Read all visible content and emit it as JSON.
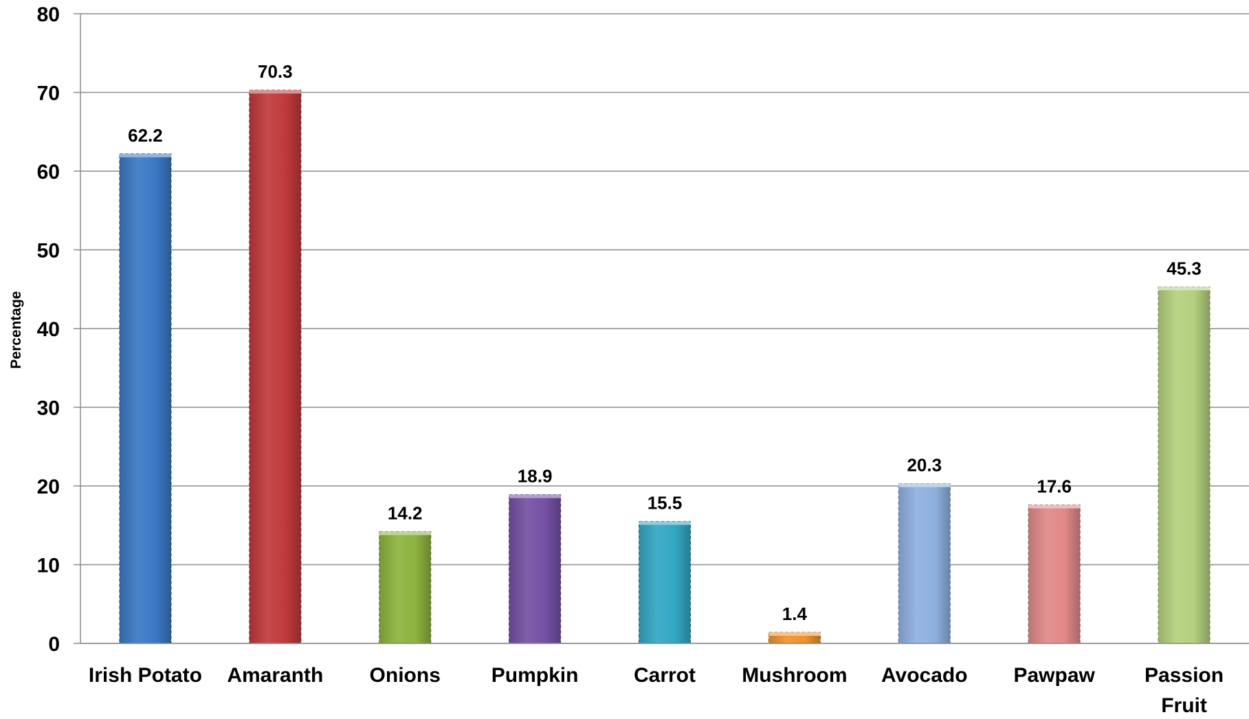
{
  "chart_data": {
    "type": "bar",
    "title": "",
    "xlabel": "",
    "ylabel": "Percentage",
    "ylim": [
      0,
      80
    ],
    "yticks": [
      0,
      10,
      20,
      30,
      40,
      50,
      60,
      70,
      80
    ],
    "grid": true,
    "legend": "none",
    "categories": [
      "Irish Potato",
      "Amaranth",
      "Onions",
      "Pumpkin",
      "Carrot",
      "Mushroom",
      "Avocado",
      "Pawpaw",
      "Passion Fruit"
    ],
    "category_lines": [
      [
        "Irish Potato"
      ],
      [
        "Amaranth"
      ],
      [
        "Onions"
      ],
      [
        "Pumpkin"
      ],
      [
        "Carrot"
      ],
      [
        "Mushroom"
      ],
      [
        "Avocado"
      ],
      [
        "Pawpaw"
      ],
      [
        "Passion",
        "Fruit"
      ]
    ],
    "values": [
      62.2,
      70.3,
      14.2,
      18.9,
      15.5,
      1.4,
      20.3,
      17.6,
      45.3
    ],
    "data_labels": [
      "62.2",
      "70.3",
      "14.2",
      "18.9",
      "15.5",
      "1.4",
      "20.3",
      "17.6",
      "45.3"
    ],
    "colors": [
      "#3b78c4",
      "#c0393b",
      "#8db33f",
      "#7550a4",
      "#32a7c4",
      "#f0922d",
      "#8fb0df",
      "#e18989",
      "#b4d07f"
    ]
  }
}
